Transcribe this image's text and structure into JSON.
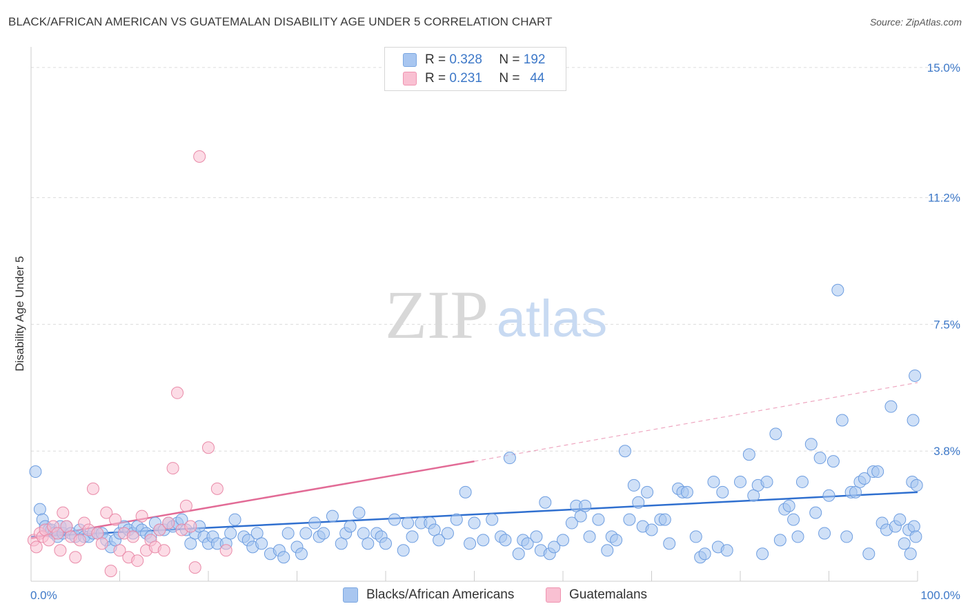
{
  "header": {
    "title": "BLACK/AFRICAN AMERICAN VS GUATEMALAN DISABILITY AGE UNDER 5 CORRELATION CHART",
    "source": "Source: ZipAtlas.com"
  },
  "watermark": {
    "zip": "ZIP",
    "atlas": "atlas"
  },
  "legend": {
    "rows": [
      {
        "r_label": "R =",
        "r_value": "0.328",
        "n_label": "N =",
        "n_value": "192",
        "color": "#a8c6f0",
        "border": "#7aa6e0"
      },
      {
        "r_label": "R =",
        "r_value": "0.231",
        "n_label": "N =",
        "n_value": "44",
        "color": "#f9c0d2",
        "border": "#ef93b0"
      }
    ]
  },
  "bottom_legend": {
    "items": [
      {
        "label": "Blacks/African Americans",
        "color": "#a8c6f0",
        "border": "#7aa6e0"
      },
      {
        "label": "Guatemalans",
        "color": "#f9c0d2",
        "border": "#ef93b0"
      }
    ]
  },
  "chart_data": {
    "type": "scatter",
    "title": "BLACK/AFRICAN AMERICAN VS GUATEMALAN DISABILITY AGE UNDER 5 CORRELATION CHART",
    "ylabel": "Disability Age Under 5",
    "xlabel": "",
    "xlim": [
      0,
      100
    ],
    "ylim": [
      0,
      15.4
    ],
    "x_tick_labels": [
      "0.0%",
      "100.0%"
    ],
    "y_ticks": [
      3.8,
      7.5,
      11.2,
      15.0
    ],
    "y_tick_labels": [
      "3.8%",
      "7.5%",
      "11.2%",
      "15.0%"
    ],
    "grid": "horizontal dashed",
    "series": [
      {
        "name": "Blacks/African Americans",
        "color": "#a8c6f0",
        "stroke": "#6d9de0",
        "line_color": "#2f6fcf",
        "trend": {
          "x": [
            0,
            100
          ],
          "y": [
            1.3,
            2.6
          ]
        },
        "points": [
          [
            0.5,
            3.2
          ],
          [
            1,
            2.1
          ],
          [
            1.3,
            1.8
          ],
          [
            1.6,
            1.6
          ],
          [
            2,
            1.5
          ],
          [
            2.3,
            1.5
          ],
          [
            2.6,
            1.4
          ],
          [
            3,
            1.3
          ],
          [
            3.3,
            1.6
          ],
          [
            3.6,
            1.4
          ],
          [
            4,
            1.6
          ],
          [
            4.5,
            1.4
          ],
          [
            5,
            1.3
          ],
          [
            5.5,
            1.5
          ],
          [
            6,
            1.3
          ],
          [
            6.5,
            1.3
          ],
          [
            7,
            1.4
          ],
          [
            7.5,
            1.4
          ],
          [
            8,
            1.4
          ],
          [
            8.5,
            1.2
          ],
          [
            9,
            1.0
          ],
          [
            9.5,
            1.2
          ],
          [
            10,
            1.4
          ],
          [
            10.5,
            1.6
          ],
          [
            11,
            1.5
          ],
          [
            11.5,
            1.4
          ],
          [
            12,
            1.6
          ],
          [
            12.5,
            1.5
          ],
          [
            13,
            1.4
          ],
          [
            13.5,
            1.3
          ],
          [
            14,
            1.7
          ],
          [
            14.5,
            1.5
          ],
          [
            15,
            1.5
          ],
          [
            15.5,
            1.7
          ],
          [
            16,
            1.6
          ],
          [
            16.5,
            1.7
          ],
          [
            17,
            1.8
          ],
          [
            17.5,
            1.5
          ],
          [
            18,
            1.1
          ],
          [
            18.5,
            1.4
          ],
          [
            19,
            1.6
          ],
          [
            19.5,
            1.3
          ],
          [
            20,
            1.1
          ],
          [
            20.5,
            1.3
          ],
          [
            21,
            1.1
          ],
          [
            22,
            1.1
          ],
          [
            22.5,
            1.4
          ],
          [
            23,
            1.8
          ],
          [
            24,
            1.3
          ],
          [
            24.5,
            1.2
          ],
          [
            25,
            1.0
          ],
          [
            25.5,
            1.4
          ],
          [
            26,
            1.1
          ],
          [
            27,
            0.8
          ],
          [
            28,
            0.9
          ],
          [
            28.5,
            0.7
          ],
          [
            29,
            1.4
          ],
          [
            30,
            1.0
          ],
          [
            30.5,
            0.8
          ],
          [
            31,
            1.4
          ],
          [
            32,
            1.7
          ],
          [
            32.5,
            1.3
          ],
          [
            33,
            1.4
          ],
          [
            34,
            1.9
          ],
          [
            35,
            1.1
          ],
          [
            35.5,
            1.4
          ],
          [
            36,
            1.6
          ],
          [
            37,
            2.0
          ],
          [
            37.5,
            1.4
          ],
          [
            38,
            1.1
          ],
          [
            39,
            1.4
          ],
          [
            39.5,
            1.3
          ],
          [
            40,
            1.1
          ],
          [
            41,
            1.8
          ],
          [
            42,
            0.9
          ],
          [
            42.5,
            1.7
          ],
          [
            43,
            1.3
          ],
          [
            44,
            1.7
          ],
          [
            45,
            1.7
          ],
          [
            45.5,
            1.5
          ],
          [
            46,
            1.2
          ],
          [
            47,
            1.4
          ],
          [
            48,
            1.8
          ],
          [
            49,
            2.6
          ],
          [
            49.5,
            1.1
          ],
          [
            50,
            1.7
          ],
          [
            51,
            1.2
          ],
          [
            52,
            1.8
          ],
          [
            53,
            1.3
          ],
          [
            53.5,
            1.2
          ],
          [
            54,
            3.6
          ],
          [
            55,
            0.8
          ],
          [
            55.5,
            1.2
          ],
          [
            56,
            1.1
          ],
          [
            57,
            1.3
          ],
          [
            57.5,
            0.9
          ],
          [
            58,
            2.3
          ],
          [
            58.5,
            0.8
          ],
          [
            59,
            1.0
          ],
          [
            60,
            1.2
          ],
          [
            61,
            1.7
          ],
          [
            61.5,
            2.2
          ],
          [
            62,
            1.9
          ],
          [
            62.5,
            2.2
          ],
          [
            63,
            1.3
          ],
          [
            64,
            1.8
          ],
          [
            65,
            0.9
          ],
          [
            65.5,
            1.3
          ],
          [
            66,
            1.2
          ],
          [
            67,
            3.8
          ],
          [
            67.5,
            1.8
          ],
          [
            68,
            2.8
          ],
          [
            68.5,
            2.3
          ],
          [
            69,
            1.6
          ],
          [
            69.5,
            2.6
          ],
          [
            70,
            1.5
          ],
          [
            71,
            1.8
          ],
          [
            71.5,
            1.8
          ],
          [
            72,
            1.1
          ],
          [
            73,
            2.7
          ],
          [
            73.5,
            2.6
          ],
          [
            74,
            2.6
          ],
          [
            75,
            1.3
          ],
          [
            75.5,
            0.7
          ],
          [
            76,
            0.8
          ],
          [
            77,
            2.9
          ],
          [
            77.5,
            1.0
          ],
          [
            78,
            2.6
          ],
          [
            78.5,
            0.9
          ],
          [
            80,
            2.9
          ],
          [
            81,
            3.7
          ],
          [
            81.5,
            2.5
          ],
          [
            82,
            2.8
          ],
          [
            82.5,
            0.8
          ],
          [
            83,
            2.9
          ],
          [
            84,
            4.3
          ],
          [
            84.5,
            1.2
          ],
          [
            85,
            2.1
          ],
          [
            85.5,
            2.2
          ],
          [
            86,
            1.8
          ],
          [
            86.5,
            1.3
          ],
          [
            87,
            2.9
          ],
          [
            88,
            4.0
          ],
          [
            88.5,
            2.0
          ],
          [
            89,
            3.6
          ],
          [
            89.5,
            1.4
          ],
          [
            90,
            2.5
          ],
          [
            90.5,
            3.5
          ],
          [
            91,
            8.5
          ],
          [
            91.5,
            4.7
          ],
          [
            92,
            1.3
          ],
          [
            92.5,
            2.6
          ],
          [
            93,
            2.6
          ],
          [
            93.5,
            2.9
          ],
          [
            94,
            3.0
          ],
          [
            94.5,
            0.8
          ],
          [
            95,
            3.2
          ],
          [
            95.5,
            3.2
          ],
          [
            96,
            1.7
          ],
          [
            96.5,
            1.5
          ],
          [
            97,
            5.1
          ],
          [
            97.5,
            1.6
          ],
          [
            98,
            1.8
          ],
          [
            98.5,
            1.1
          ],
          [
            99,
            1.5
          ],
          [
            99.2,
            0.8
          ],
          [
            99.4,
            2.9
          ],
          [
            99.5,
            4.7
          ],
          [
            99.6,
            1.6
          ],
          [
            99.7,
            6.0
          ],
          [
            99.8,
            1.3
          ],
          [
            99.9,
            2.8
          ]
        ]
      },
      {
        "name": "Guatemalans",
        "color": "#f9c0d2",
        "stroke": "#e98aa8",
        "line_color": "#e26b96",
        "trend": {
          "x": [
            0,
            50
          ],
          "y": [
            1.25,
            3.5
          ]
        },
        "trend_extension": {
          "x": [
            50,
            100
          ],
          "y": [
            3.5,
            5.8
          ]
        },
        "points": [
          [
            0.3,
            1.2
          ],
          [
            0.6,
            1.0
          ],
          [
            1,
            1.4
          ],
          [
            1.3,
            1.3
          ],
          [
            1.6,
            1.5
          ],
          [
            2,
            1.2
          ],
          [
            2.5,
            1.6
          ],
          [
            3,
            1.4
          ],
          [
            3.3,
            0.9
          ],
          [
            3.6,
            2.0
          ],
          [
            4,
            1.6
          ],
          [
            4.5,
            1.3
          ],
          [
            5,
            0.7
          ],
          [
            5.5,
            1.2
          ],
          [
            6,
            1.7
          ],
          [
            6.5,
            1.5
          ],
          [
            7,
            2.7
          ],
          [
            7.5,
            1.4
          ],
          [
            8,
            1.1
          ],
          [
            8.5,
            2.0
          ],
          [
            9,
            0.3
          ],
          [
            9.5,
            1.8
          ],
          [
            10,
            0.9
          ],
          [
            10.5,
            1.4
          ],
          [
            11,
            0.7
          ],
          [
            11.5,
            1.3
          ],
          [
            12,
            0.6
          ],
          [
            12.5,
            1.9
          ],
          [
            13,
            0.9
          ],
          [
            13.5,
            1.2
          ],
          [
            14,
            1.0
          ],
          [
            14.5,
            1.5
          ],
          [
            15,
            0.9
          ],
          [
            15.5,
            1.7
          ],
          [
            16,
            3.3
          ],
          [
            16.5,
            5.5
          ],
          [
            17,
            1.5
          ],
          [
            17.5,
            2.2
          ],
          [
            18,
            1.6
          ],
          [
            18.5,
            0.4
          ],
          [
            19,
            12.4
          ],
          [
            20,
            3.9
          ],
          [
            21,
            2.7
          ],
          [
            22,
            0.9
          ]
        ]
      }
    ]
  }
}
